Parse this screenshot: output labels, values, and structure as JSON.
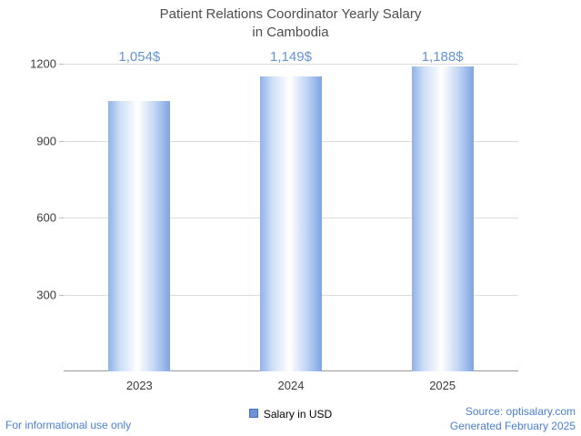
{
  "title": {
    "line1": "Patient Relations Coordinator Yearly Salary",
    "line2": "in Cambodia"
  },
  "chart_data": {
    "type": "bar",
    "title": "Patient Relations Coordinator Yearly Salary in Cambodia",
    "categories": [
      "2023",
      "2024",
      "2025"
    ],
    "values": [
      1054,
      1149,
      1188
    ],
    "value_labels": [
      "1,054$",
      "1,149$",
      "1,188$"
    ],
    "series_name": "Salary in USD",
    "xlabel": "",
    "ylabel": "",
    "ylim": [
      0,
      1200
    ],
    "yticks": [
      300,
      600,
      900,
      1200
    ],
    "grid": true,
    "legend_position": "bottom",
    "bar_color_edge": "#7fa4e4",
    "bar_color_center": "#ffffff",
    "value_label_color": "#6494d6"
  },
  "legend": {
    "label": "Salary in USD",
    "swatch_color": "#6d93d6"
  },
  "footer": {
    "left": "For informational use only",
    "source": "Source: optisalary.com",
    "generated": "Generated February 2025"
  }
}
